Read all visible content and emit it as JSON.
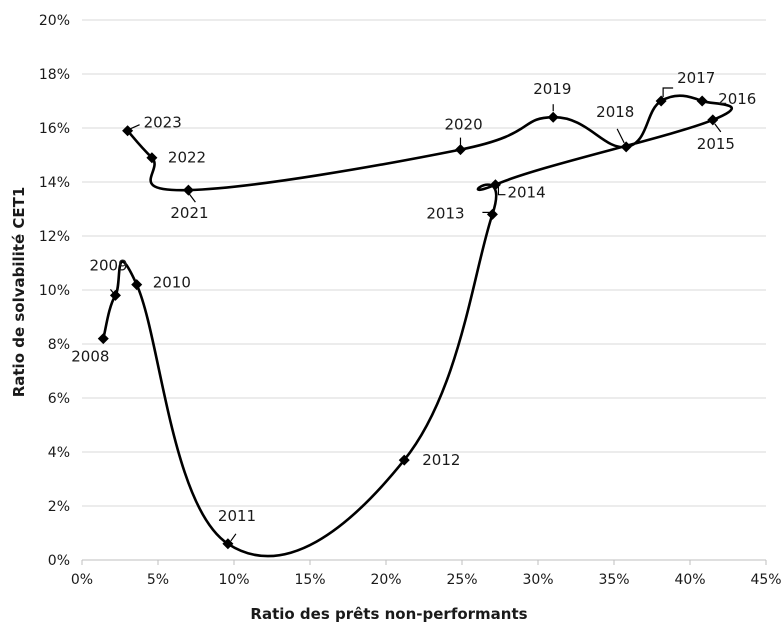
{
  "chart_data": {
    "type": "scatter",
    "title": "",
    "xlabel": "Ratio des prêts non-performants",
    "ylabel": "Ratio de solvabilité CET1",
    "xlim": [
      0,
      45
    ],
    "ylim": [
      0,
      20
    ],
    "x_ticks": [
      "0%",
      "5%",
      "10%",
      "15%",
      "20%",
      "25%",
      "30%",
      "35%",
      "40%",
      "45%"
    ],
    "y_ticks": [
      "0%",
      "2%",
      "4%",
      "6%",
      "8%",
      "10%",
      "12%",
      "14%",
      "16%",
      "18%",
      "20%"
    ],
    "grid": "horizontal",
    "connected": true,
    "smooth": true,
    "points": [
      {
        "label": "2008",
        "x": 1.4,
        "y": 8.2
      },
      {
        "label": "2009",
        "x": 2.2,
        "y": 9.8
      },
      {
        "label": "2010",
        "x": 3.6,
        "y": 10.2
      },
      {
        "label": "2011",
        "x": 9.6,
        "y": 0.6
      },
      {
        "label": "2012",
        "x": 21.2,
        "y": 3.7
      },
      {
        "label": "2013",
        "x": 27.0,
        "y": 12.8
      },
      {
        "label": "2014",
        "x": 27.2,
        "y": 13.9
      },
      {
        "label": "2015",
        "x": 41.5,
        "y": 16.3
      },
      {
        "label": "2016",
        "x": 40.8,
        "y": 17.0
      },
      {
        "label": "2017",
        "x": 38.1,
        "y": 17.0
      },
      {
        "label": "2018",
        "x": 35.8,
        "y": 15.3
      },
      {
        "label": "2019",
        "x": 31.0,
        "y": 16.4
      },
      {
        "label": "2020",
        "x": 24.9,
        "y": 15.2
      },
      {
        "label": "2021",
        "x": 7.0,
        "y": 13.7
      },
      {
        "label": "2022",
        "x": 4.6,
        "y": 14.9
      },
      {
        "label": "2023",
        "x": 3.0,
        "y": 15.9
      }
    ]
  }
}
